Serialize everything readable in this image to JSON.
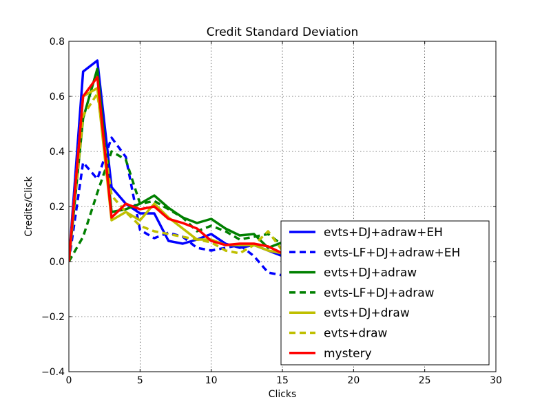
{
  "chart_data": {
    "type": "line",
    "title": "Credit Standard Deviation",
    "xlabel": "Clicks",
    "ylabel": "Credits/Click",
    "xlim": [
      0,
      30
    ],
    "ylim": [
      -0.4,
      0.8
    ],
    "xticks": [
      0,
      5,
      10,
      15,
      20,
      25,
      30
    ],
    "xtick_labels": [
      "0",
      "5",
      "10",
      "15",
      "20",
      "25",
      "30"
    ],
    "yticks": [
      -0.4,
      -0.2,
      0.0,
      0.2,
      0.4,
      0.6,
      0.8
    ],
    "ytick_labels": [
      "−0.4",
      "−0.2",
      "0.0",
      "0.2",
      "0.4",
      "0.6",
      "0.8"
    ],
    "grid": true,
    "legend_position": "lower-right",
    "x": [
      0,
      1,
      2,
      3,
      4,
      5,
      6,
      7,
      8,
      9,
      10,
      11,
      12,
      13,
      14,
      15
    ],
    "series": [
      {
        "name": "evts+DJ+adraw+EH",
        "color": "#0000ff",
        "dash": "solid",
        "values": [
          0.0,
          0.69,
          0.73,
          0.27,
          0.21,
          0.175,
          0.175,
          0.075,
          0.065,
          0.08,
          0.1,
          0.065,
          0.05,
          0.06,
          0.04,
          0.02
        ]
      },
      {
        "name": "evts-LF+DJ+adraw+EH",
        "color": "#0000ff",
        "dash": "dashed",
        "values": [
          0.0,
          0.36,
          0.3,
          0.45,
          0.38,
          0.115,
          0.085,
          0.105,
          0.09,
          0.05,
          0.04,
          0.05,
          0.06,
          0.02,
          -0.04,
          -0.05
        ]
      },
      {
        "name": "evts+DJ+adraw",
        "color": "#008000",
        "dash": "solid",
        "values": [
          0.0,
          0.52,
          0.7,
          0.18,
          0.19,
          0.21,
          0.24,
          0.195,
          0.16,
          0.14,
          0.155,
          0.12,
          0.095,
          0.1,
          0.05,
          0.07
        ]
      },
      {
        "name": "evts-LF+DJ+adraw",
        "color": "#008000",
        "dash": "dashed",
        "values": [
          0.0,
          0.09,
          0.25,
          0.4,
          0.37,
          0.21,
          0.22,
          0.19,
          0.16,
          0.11,
          0.13,
          0.11,
          0.08,
          0.09,
          0.1,
          0.06
        ]
      },
      {
        "name": "evts+DJ+draw",
        "color": "#bfbf00",
        "dash": "solid",
        "values": [
          0.0,
          0.6,
          0.63,
          0.15,
          0.18,
          0.15,
          0.21,
          0.16,
          0.12,
          0.08,
          0.08,
          0.06,
          0.06,
          0.06,
          0.04,
          0.03
        ]
      },
      {
        "name": "evts+draw",
        "color": "#bfbf00",
        "dash": "dashed",
        "values": [
          0.0,
          0.53,
          0.61,
          0.24,
          0.18,
          0.13,
          0.11,
          0.1,
          0.09,
          0.08,
          0.07,
          0.04,
          0.03,
          0.06,
          0.11,
          0.04
        ]
      },
      {
        "name": "mystery",
        "color": "#ff0000",
        "dash": "solid",
        "values": [
          0.0,
          0.6,
          0.67,
          0.16,
          0.21,
          0.19,
          0.2,
          0.155,
          0.14,
          0.12,
          0.075,
          0.06,
          0.065,
          0.065,
          0.055,
          0.03
        ]
      }
    ]
  }
}
